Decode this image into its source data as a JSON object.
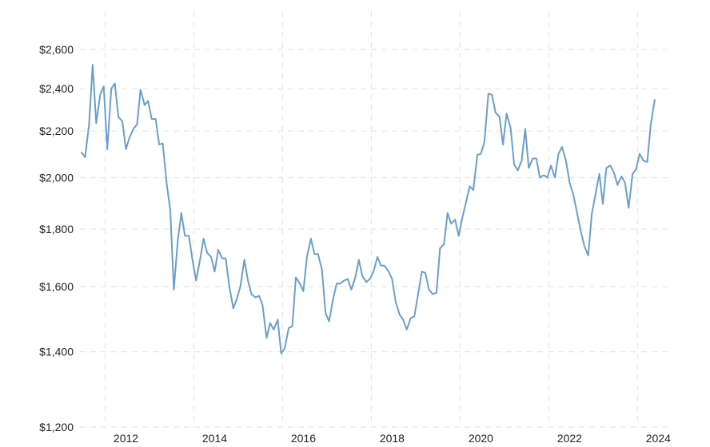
{
  "chart_data": {
    "type": "line",
    "title": "",
    "xlabel": "",
    "ylabel": "",
    "scale": "log",
    "grid": true,
    "line_color": "#6a9fcb",
    "grid_color": "#e6e6e6",
    "xlim": [
      2011.0,
      2024.3
    ],
    "ylim": [
      1200,
      2600
    ],
    "x_ticks": [
      {
        "value": 2012,
        "label": "2012"
      },
      {
        "value": 2014,
        "label": "2014"
      },
      {
        "value": 2016,
        "label": "2016"
      },
      {
        "value": 2018,
        "label": "2018"
      },
      {
        "value": 2020,
        "label": "2020"
      },
      {
        "value": 2022,
        "label": "2022"
      },
      {
        "value": 2024,
        "label": "2024"
      }
    ],
    "y_ticks": [
      {
        "value": 1200,
        "label": "$1,200"
      },
      {
        "value": 1400,
        "label": "$1,400"
      },
      {
        "value": 1600,
        "label": "$1,600"
      },
      {
        "value": 1800,
        "label": "$1,800"
      },
      {
        "value": 2000,
        "label": "$2,000"
      },
      {
        "value": 2200,
        "label": "$2,200"
      },
      {
        "value": 2400,
        "label": "$2,400"
      },
      {
        "value": 2600,
        "label": "$2,600"
      }
    ],
    "series": [
      {
        "values": [
          [
            2011.0,
            2105
          ],
          [
            2011.08,
            2085
          ],
          [
            2011.17,
            2230
          ],
          [
            2011.25,
            2520
          ],
          [
            2011.33,
            2235
          ],
          [
            2011.42,
            2370
          ],
          [
            2011.5,
            2410
          ],
          [
            2011.58,
            2120
          ],
          [
            2011.67,
            2400
          ],
          [
            2011.75,
            2425
          ],
          [
            2011.83,
            2265
          ],
          [
            2011.92,
            2245
          ],
          [
            2012.0,
            2120
          ],
          [
            2012.08,
            2170
          ],
          [
            2012.17,
            2210
          ],
          [
            2012.25,
            2230
          ],
          [
            2012.33,
            2395
          ],
          [
            2012.42,
            2320
          ],
          [
            2012.5,
            2340
          ],
          [
            2012.58,
            2255
          ],
          [
            2012.67,
            2255
          ],
          [
            2012.75,
            2140
          ],
          [
            2012.83,
            2145
          ],
          [
            2012.92,
            1975
          ],
          [
            2013.0,
            1870
          ],
          [
            2013.08,
            1590
          ],
          [
            2013.17,
            1760
          ],
          [
            2013.25,
            1860
          ],
          [
            2013.33,
            1775
          ],
          [
            2013.42,
            1775
          ],
          [
            2013.5,
            1690
          ],
          [
            2013.58,
            1620
          ],
          [
            2013.67,
            1690
          ],
          [
            2013.75,
            1765
          ],
          [
            2013.83,
            1715
          ],
          [
            2013.92,
            1700
          ],
          [
            2014.0,
            1650
          ],
          [
            2014.08,
            1725
          ],
          [
            2014.17,
            1695
          ],
          [
            2014.25,
            1695
          ],
          [
            2014.33,
            1600
          ],
          [
            2014.42,
            1530
          ],
          [
            2014.5,
            1560
          ],
          [
            2014.58,
            1600
          ],
          [
            2014.67,
            1690
          ],
          [
            2014.75,
            1620
          ],
          [
            2014.83,
            1575
          ],
          [
            2014.92,
            1565
          ],
          [
            2015.0,
            1570
          ],
          [
            2015.08,
            1540
          ],
          [
            2015.17,
            1440
          ],
          [
            2015.25,
            1485
          ],
          [
            2015.33,
            1465
          ],
          [
            2015.42,
            1495
          ],
          [
            2015.5,
            1395
          ],
          [
            2015.58,
            1410
          ],
          [
            2015.67,
            1470
          ],
          [
            2015.75,
            1475
          ],
          [
            2015.83,
            1630
          ],
          [
            2015.92,
            1610
          ],
          [
            2016.0,
            1585
          ],
          [
            2016.08,
            1700
          ],
          [
            2016.17,
            1765
          ],
          [
            2016.25,
            1710
          ],
          [
            2016.33,
            1710
          ],
          [
            2016.42,
            1655
          ],
          [
            2016.5,
            1515
          ],
          [
            2016.58,
            1490
          ],
          [
            2016.67,
            1560
          ],
          [
            2016.75,
            1610
          ],
          [
            2016.83,
            1610
          ],
          [
            2016.92,
            1620
          ],
          [
            2017.0,
            1625
          ],
          [
            2017.08,
            1590
          ],
          [
            2017.17,
            1630
          ],
          [
            2017.25,
            1690
          ],
          [
            2017.33,
            1635
          ],
          [
            2017.42,
            1615
          ],
          [
            2017.5,
            1625
          ],
          [
            2017.58,
            1650
          ],
          [
            2017.67,
            1700
          ],
          [
            2017.75,
            1670
          ],
          [
            2017.83,
            1670
          ],
          [
            2017.92,
            1650
          ],
          [
            2018.0,
            1625
          ],
          [
            2018.08,
            1550
          ],
          [
            2018.17,
            1510
          ],
          [
            2018.25,
            1495
          ],
          [
            2018.33,
            1465
          ],
          [
            2018.42,
            1500
          ],
          [
            2018.5,
            1505
          ],
          [
            2018.58,
            1570
          ],
          [
            2018.67,
            1650
          ],
          [
            2018.75,
            1645
          ],
          [
            2018.83,
            1590
          ],
          [
            2018.92,
            1575
          ],
          [
            2019.0,
            1580
          ],
          [
            2019.08,
            1730
          ],
          [
            2019.17,
            1745
          ],
          [
            2019.25,
            1860
          ],
          [
            2019.33,
            1820
          ],
          [
            2019.42,
            1835
          ],
          [
            2019.5,
            1775
          ],
          [
            2019.58,
            1840
          ],
          [
            2019.67,
            1905
          ],
          [
            2019.75,
            1965
          ],
          [
            2019.83,
            1950
          ],
          [
            2019.92,
            2095
          ],
          [
            2020.0,
            2100
          ],
          [
            2020.08,
            2150
          ],
          [
            2020.17,
            2375
          ],
          [
            2020.25,
            2370
          ],
          [
            2020.33,
            2285
          ],
          [
            2020.42,
            2265
          ],
          [
            2020.5,
            2140
          ],
          [
            2020.58,
            2280
          ],
          [
            2020.67,
            2215
          ],
          [
            2020.75,
            2055
          ],
          [
            2020.83,
            2030
          ],
          [
            2020.92,
            2070
          ],
          [
            2021.0,
            2210
          ],
          [
            2021.08,
            2040
          ],
          [
            2021.17,
            2080
          ],
          [
            2021.25,
            2080
          ],
          [
            2021.33,
            2000
          ],
          [
            2021.42,
            2010
          ],
          [
            2021.5,
            2000
          ],
          [
            2021.58,
            2050
          ],
          [
            2021.67,
            2000
          ],
          [
            2021.75,
            2100
          ],
          [
            2021.83,
            2130
          ],
          [
            2021.92,
            2070
          ],
          [
            2022.0,
            1980
          ],
          [
            2022.08,
            1935
          ],
          [
            2022.17,
            1860
          ],
          [
            2022.25,
            1795
          ],
          [
            2022.33,
            1740
          ],
          [
            2022.42,
            1705
          ],
          [
            2022.5,
            1855
          ],
          [
            2022.58,
            1930
          ],
          [
            2022.67,
            2015
          ],
          [
            2022.75,
            1895
          ],
          [
            2022.83,
            2040
          ],
          [
            2022.92,
            2050
          ],
          [
            2023.0,
            2020
          ],
          [
            2023.08,
            1970
          ],
          [
            2023.17,
            2005
          ],
          [
            2023.25,
            1980
          ],
          [
            2023.33,
            1880
          ],
          [
            2023.42,
            2015
          ],
          [
            2023.5,
            2035
          ],
          [
            2023.58,
            2100
          ],
          [
            2023.67,
            2070
          ],
          [
            2023.75,
            2065
          ],
          [
            2023.83,
            2230
          ],
          [
            2023.92,
            2345
          ]
        ]
      }
    ]
  }
}
